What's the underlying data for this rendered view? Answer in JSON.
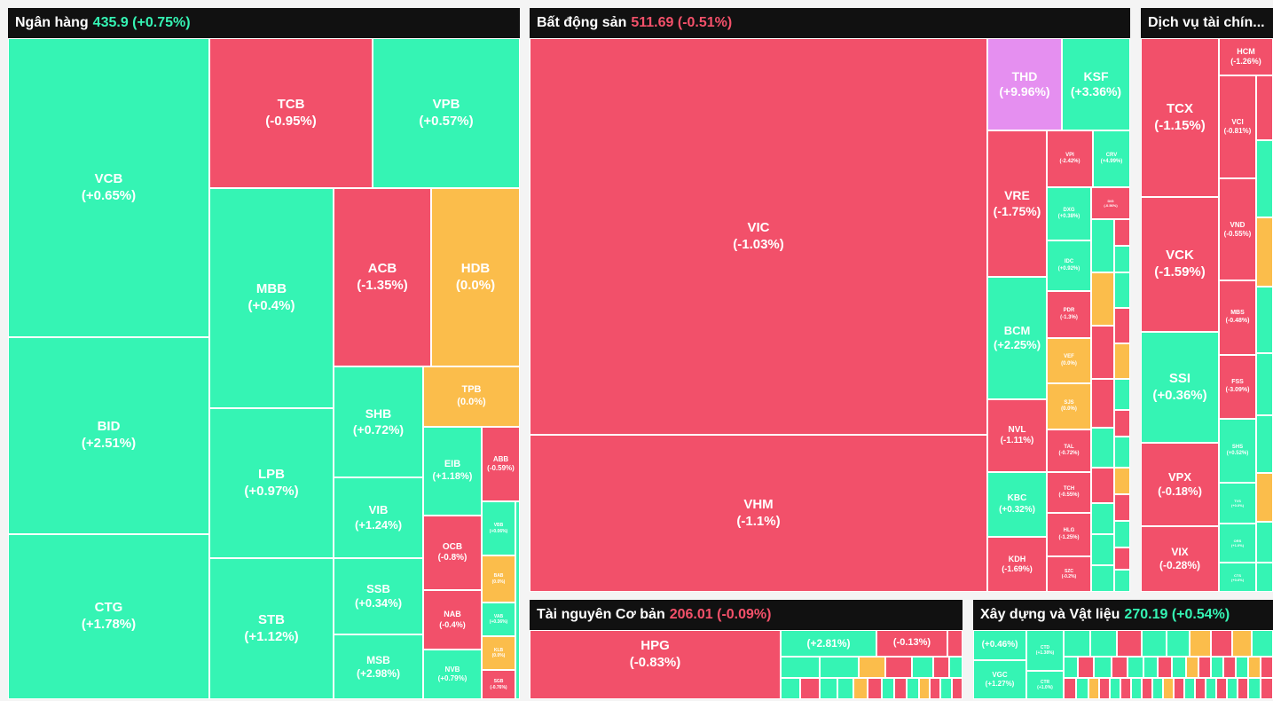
{
  "sectors": [
    {
      "name": "Ngân hàng",
      "value": "435.9",
      "change": "(+0.75%)",
      "trend": "up",
      "tiles": [
        {
          "ticker": "VCB",
          "change": "(+0.65%)",
          "color": "g"
        },
        {
          "ticker": "BID",
          "change": "(+2.51%)",
          "color": "g"
        },
        {
          "ticker": "CTG",
          "change": "(+1.78%)",
          "color": "g"
        },
        {
          "ticker": "TCB",
          "change": "(-0.95%)",
          "color": "r"
        },
        {
          "ticker": "VPB",
          "change": "(+0.57%)",
          "color": "g"
        },
        {
          "ticker": "MBB",
          "change": "(+0.4%)",
          "color": "g"
        },
        {
          "ticker": "LPB",
          "change": "(+0.97%)",
          "color": "g"
        },
        {
          "ticker": "STB",
          "change": "(+1.12%)",
          "color": "g"
        },
        {
          "ticker": "ACB",
          "change": "(-1.35%)",
          "color": "r"
        },
        {
          "ticker": "HDB",
          "change": "(0.0%)",
          "color": "y"
        },
        {
          "ticker": "SHB",
          "change": "(+0.72%)",
          "color": "g"
        },
        {
          "ticker": "TPB",
          "change": "(0.0%)",
          "color": "y"
        },
        {
          "ticker": "VIB",
          "change": "(+1.24%)",
          "color": "g"
        },
        {
          "ticker": "EIB",
          "change": "(+1.18%)",
          "color": "g"
        },
        {
          "ticker": "ABB",
          "change": "(-0.59%)",
          "color": "r"
        },
        {
          "ticker": "SSB",
          "change": "(+0.34%)",
          "color": "g"
        },
        {
          "ticker": "OCB",
          "change": "(-0.8%)",
          "color": "r"
        },
        {
          "ticker": "VBB",
          "change": "(+0.06%)",
          "color": "g"
        },
        {
          "ticker": "BAB",
          "change": "(0.0%)",
          "color": "y"
        },
        {
          "ticker": "MSB",
          "change": "(+2.98%)",
          "color": "g"
        },
        {
          "ticker": "NAB",
          "change": "(-0.4%)",
          "color": "r"
        },
        {
          "ticker": "NVB",
          "change": "(+0.79%)",
          "color": "g"
        },
        {
          "ticker": "VAB",
          "change": "(+0.36%)",
          "color": "g"
        },
        {
          "ticker": "KLB",
          "change": "(0.0%)",
          "color": "y"
        },
        {
          "ticker": "SGB",
          "change": "(-0.76%)",
          "color": "r"
        }
      ]
    },
    {
      "name": "Bất động sản",
      "value": "511.69",
      "change": "(-0.51%)",
      "trend": "down",
      "tiles": [
        {
          "ticker": "VIC",
          "change": "(-1.03%)",
          "color": "r"
        },
        {
          "ticker": "VHM",
          "change": "(-1.1%)",
          "color": "r"
        },
        {
          "ticker": "THD",
          "change": "(+9.96%)",
          "color": "p"
        },
        {
          "ticker": "KSF",
          "change": "(+3.36%)",
          "color": "g"
        },
        {
          "ticker": "VRE",
          "change": "(-1.75%)",
          "color": "r"
        },
        {
          "ticker": "VPI",
          "change": "(-2.42%)",
          "color": "r"
        },
        {
          "ticker": "CRV",
          "change": "(+4.99%)",
          "color": "g"
        },
        {
          "ticker": "DXG",
          "change": "(+0.38%)",
          "color": "g"
        },
        {
          "ticker": "DIG",
          "change": "(-0.56%)",
          "color": "r"
        },
        {
          "ticker": "IDC",
          "change": "(+0.92%)",
          "color": "g"
        },
        {
          "ticker": "BCM",
          "change": "(+2.25%)",
          "color": "g"
        },
        {
          "ticker": "PDR",
          "change": "(-1.3%)",
          "color": "r"
        },
        {
          "ticker": "VEF",
          "change": "(0.0%)",
          "color": "y"
        },
        {
          "ticker": "SJS",
          "change": "(0.0%)",
          "color": "y"
        },
        {
          "ticker": "NVL",
          "change": "(-1.11%)",
          "color": "r"
        },
        {
          "ticker": "TAL",
          "change": "(-0.72%)",
          "color": "r"
        },
        {
          "ticker": "TCH",
          "change": "(-0.55%)",
          "color": "r"
        },
        {
          "ticker": "KBC",
          "change": "(+0.32%)",
          "color": "g"
        },
        {
          "ticker": "HLG",
          "change": "(-1.25%)",
          "color": "r"
        },
        {
          "ticker": "KDH",
          "change": "(-1.69%)",
          "color": "r"
        },
        {
          "ticker": "SZC",
          "change": "(-0.2%)",
          "color": "r"
        }
      ]
    },
    {
      "name": "Dịch vụ tài chín...",
      "value": "",
      "change": "",
      "trend": "",
      "tiles": [
        {
          "ticker": "TCX",
          "change": "(-1.15%)",
          "color": "r"
        },
        {
          "ticker": "HCM",
          "change": "(-1.26%)",
          "color": "r"
        },
        {
          "ticker": "VCI",
          "change": "(-0.81%)",
          "color": "r"
        },
        {
          "ticker": "VCK",
          "change": "(-1.59%)",
          "color": "r"
        },
        {
          "ticker": "VND",
          "change": "(-0.55%)",
          "color": "r"
        },
        {
          "ticker": "MBS",
          "change": "(-0.48%)",
          "color": "r"
        },
        {
          "ticker": "SSI",
          "change": "(+0.36%)",
          "color": "g"
        },
        {
          "ticker": "FSS",
          "change": "(-3.09%)",
          "color": "r"
        },
        {
          "ticker": "SHS",
          "change": "(+0.52%)",
          "color": "g"
        },
        {
          "ticker": "VPX",
          "change": "(-0.18%)",
          "color": "r"
        },
        {
          "ticker": "TVS",
          "change": "(+0.0%)",
          "color": "g"
        },
        {
          "ticker": "ORS",
          "change": "(+1.0%)",
          "color": "g"
        },
        {
          "ticker": "VIX",
          "change": "(-0.28%)",
          "color": "r"
        },
        {
          "ticker": "CTS",
          "change": "(+0.6%)",
          "color": "g"
        }
      ]
    },
    {
      "name": "Tài nguyên Cơ bản",
      "value": "206.01",
      "change": "(-0.09%)",
      "trend": "down",
      "tiles": [
        {
          "ticker": "HPG",
          "change": "(-0.83%)",
          "color": "r"
        },
        {
          "ticker": "",
          "change": "(+2.81%)",
          "color": "g"
        },
        {
          "ticker": "",
          "change": "(-0.13%)",
          "color": "r"
        }
      ]
    },
    {
      "name": "Xây dựng và Vật liệu",
      "value": "270.19",
      "change": "(+0.54%)",
      "trend": "up",
      "tiles": [
        {
          "ticker": "",
          "change": "(+0.46%)",
          "color": "g"
        },
        {
          "ticker": "VGC",
          "change": "(+1.27%)",
          "color": "g"
        },
        {
          "ticker": "CTD",
          "change": "(+1.38%)",
          "color": "g"
        },
        {
          "ticker": "CTR",
          "change": "(+1.0%)",
          "color": "g"
        }
      ]
    }
  ],
  "colors": {
    "up": "#35f4b4",
    "down": "#f2506a",
    "flat": "#fbbd4b",
    "ceiling": "#e58ff0",
    "header_bg": "#111111"
  }
}
